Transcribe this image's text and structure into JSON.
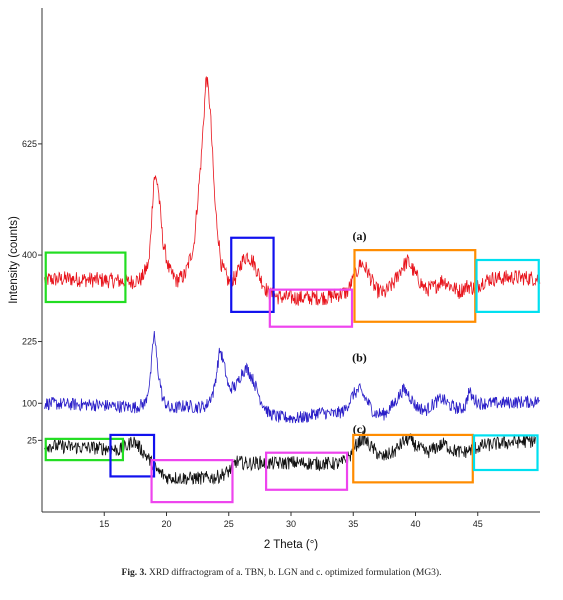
{
  "caption": {
    "fig_label": "Fig. 3.",
    "text": "XRD diffractogram of a. TBN, b. LGN and c. optimized formulation (MG3)."
  },
  "chart_data": {
    "type": "line",
    "xlabel": "2 Theta (°)",
    "ylabel": "Intensity (counts)",
    "xlim": [
      10,
      50
    ],
    "ylim": [
      -120,
      900
    ],
    "x_ticks": [
      15,
      20,
      25,
      30,
      35,
      40,
      45
    ],
    "y_ticks": [
      25,
      100,
      225,
      400,
      625
    ],
    "grid": false,
    "series": [
      {
        "label": "(a)",
        "color": "#e8141c",
        "noise": 16,
        "points": [
          [
            10.2,
            350
          ],
          [
            12,
            352
          ],
          [
            14,
            350
          ],
          [
            16,
            348
          ],
          [
            17,
            345
          ],
          [
            18,
            352
          ],
          [
            18.6,
            385
          ],
          [
            19.0,
            560
          ],
          [
            19.3,
            545
          ],
          [
            19.7,
            430
          ],
          [
            20.2,
            370
          ],
          [
            20.8,
            348
          ],
          [
            21.5,
            360
          ],
          [
            22.2,
            420
          ],
          [
            22.8,
            600
          ],
          [
            23.2,
            765
          ],
          [
            23.5,
            700
          ],
          [
            23.9,
            500
          ],
          [
            24.4,
            380
          ],
          [
            25.0,
            345
          ],
          [
            25.6,
            355
          ],
          [
            26.0,
            385
          ],
          [
            26.5,
            400
          ],
          [
            27.0,
            385
          ],
          [
            27.6,
            350
          ],
          [
            28.2,
            322
          ],
          [
            29,
            315
          ],
          [
            31,
            313
          ],
          [
            33,
            315
          ],
          [
            34.5,
            325
          ],
          [
            35.2,
            360
          ],
          [
            35.6,
            385
          ],
          [
            36.1,
            370
          ],
          [
            36.8,
            330
          ],
          [
            37.5,
            322
          ],
          [
            38.3,
            345
          ],
          [
            38.9,
            375
          ],
          [
            39.4,
            388
          ],
          [
            40.0,
            360
          ],
          [
            40.8,
            330
          ],
          [
            41.5,
            335
          ],
          [
            42.2,
            350
          ],
          [
            42.8,
            338
          ],
          [
            43.5,
            326
          ],
          [
            44.2,
            338
          ],
          [
            44.8,
            332
          ],
          [
            45.3,
            345
          ],
          [
            46,
            352
          ],
          [
            48,
            355
          ],
          [
            50,
            352
          ]
        ]
      },
      {
        "label": "(b)",
        "color": "#2a1ec8",
        "noise": 13,
        "points": [
          [
            10.2,
            100
          ],
          [
            12,
            98
          ],
          [
            14,
            97
          ],
          [
            16,
            94
          ],
          [
            17.5,
            92
          ],
          [
            18.3,
            100
          ],
          [
            18.7,
            150
          ],
          [
            19.0,
            245
          ],
          [
            19.3,
            170
          ],
          [
            19.7,
            108
          ],
          [
            20.3,
            88
          ],
          [
            21.5,
            95
          ],
          [
            22.5,
            92
          ],
          [
            23.2,
            95
          ],
          [
            23.8,
            125
          ],
          [
            24.3,
            210
          ],
          [
            24.6,
            180
          ],
          [
            25.0,
            130
          ],
          [
            25.6,
            135
          ],
          [
            26.1,
            165
          ],
          [
            26.5,
            170
          ],
          [
            27.0,
            145
          ],
          [
            27.6,
            105
          ],
          [
            28.2,
            80
          ],
          [
            29,
            72
          ],
          [
            30.5,
            70
          ],
          [
            31.5,
            74
          ],
          [
            32.2,
            82
          ],
          [
            32.8,
            80
          ],
          [
            33.5,
            78
          ],
          [
            34.3,
            85
          ],
          [
            35.0,
            118
          ],
          [
            35.5,
            128
          ],
          [
            36.1,
            105
          ],
          [
            36.7,
            80
          ],
          [
            37.5,
            78
          ],
          [
            38.3,
            100
          ],
          [
            39.0,
            128
          ],
          [
            39.4,
            120
          ],
          [
            40.0,
            95
          ],
          [
            40.8,
            85
          ],
          [
            41.5,
            100
          ],
          [
            42.1,
            110
          ],
          [
            42.8,
            95
          ],
          [
            43.6,
            88
          ],
          [
            44.0,
            95
          ],
          [
            44.3,
            125
          ],
          [
            44.6,
            110
          ],
          [
            45.2,
            100
          ],
          [
            46,
            100
          ],
          [
            48,
            102
          ],
          [
            50,
            104
          ]
        ]
      },
      {
        "label": "(c)",
        "color": "#111111",
        "noise": 14,
        "points": [
          [
            10.2,
            15
          ],
          [
            12,
            12
          ],
          [
            14,
            10
          ],
          [
            15.5,
            8
          ],
          [
            16.2,
            5
          ],
          [
            16.8,
            12
          ],
          [
            17.3,
            25
          ],
          [
            17.8,
            12
          ],
          [
            18.5,
            -10
          ],
          [
            19.2,
            -35
          ],
          [
            20,
            -50
          ],
          [
            22,
            -52
          ],
          [
            24,
            -50
          ],
          [
            25,
            -38
          ],
          [
            25.6,
            -18
          ],
          [
            26.5,
            -22
          ],
          [
            27.5,
            -20
          ],
          [
            28.5,
            -22
          ],
          [
            30,
            -20
          ],
          [
            32,
            -22
          ],
          [
            34,
            -22
          ],
          [
            34.8,
            -5
          ],
          [
            35.3,
            18
          ],
          [
            35.8,
            30
          ],
          [
            36.5,
            10
          ],
          [
            37.3,
            -10
          ],
          [
            38.3,
            2
          ],
          [
            39.0,
            22
          ],
          [
            39.5,
            28
          ],
          [
            40.1,
            12
          ],
          [
            40.9,
            0
          ],
          [
            41.6,
            10
          ],
          [
            42.3,
            18
          ],
          [
            43.0,
            5
          ],
          [
            43.8,
            0
          ],
          [
            44.6,
            8
          ],
          [
            45.5,
            15
          ],
          [
            46.5,
            18
          ],
          [
            48,
            22
          ],
          [
            49.7,
            24
          ]
        ]
      }
    ],
    "annotations": [
      {
        "label": "(a)",
        "x": 35.5,
        "y": 430
      },
      {
        "label": "(b)",
        "x": 35.5,
        "y": 185
      },
      {
        "label": "(c)",
        "x": 35.5,
        "y": 40
      }
    ],
    "highlight_boxes": [
      {
        "color": "#22dd22",
        "x0": 10.3,
        "x1": 16.7,
        "y0": 305,
        "y1": 405
      },
      {
        "color": "#1111ee",
        "x0": 25.2,
        "x1": 28.6,
        "y0": 285,
        "y1": 435
      },
      {
        "color": "#ee44ee",
        "x0": 28.3,
        "x1": 34.9,
        "y0": 255,
        "y1": 330
      },
      {
        "color": "#ff8c00",
        "x0": 35.1,
        "x1": 44.8,
        "y0": 265,
        "y1": 410
      },
      {
        "color": "#00e0f0",
        "x0": 44.9,
        "x1": 49.9,
        "y0": 285,
        "y1": 390
      },
      {
        "color": "#22dd22",
        "x0": 10.3,
        "x1": 16.5,
        "y0": -15,
        "y1": 28
      },
      {
        "color": "#1111ee",
        "x0": 15.5,
        "x1": 19.0,
        "y0": -48,
        "y1": 36
      },
      {
        "color": "#ee44ee",
        "x0": 18.8,
        "x1": 25.3,
        "y0": -100,
        "y1": -15
      },
      {
        "color": "#ee44ee",
        "x0": 28.0,
        "x1": 34.5,
        "y0": -75,
        "y1": 0
      },
      {
        "color": "#ff8c00",
        "x0": 35.0,
        "x1": 44.6,
        "y0": -60,
        "y1": 36
      },
      {
        "color": "#00e0f0",
        "x0": 44.7,
        "x1": 49.8,
        "y0": -35,
        "y1": 35
      }
    ]
  }
}
